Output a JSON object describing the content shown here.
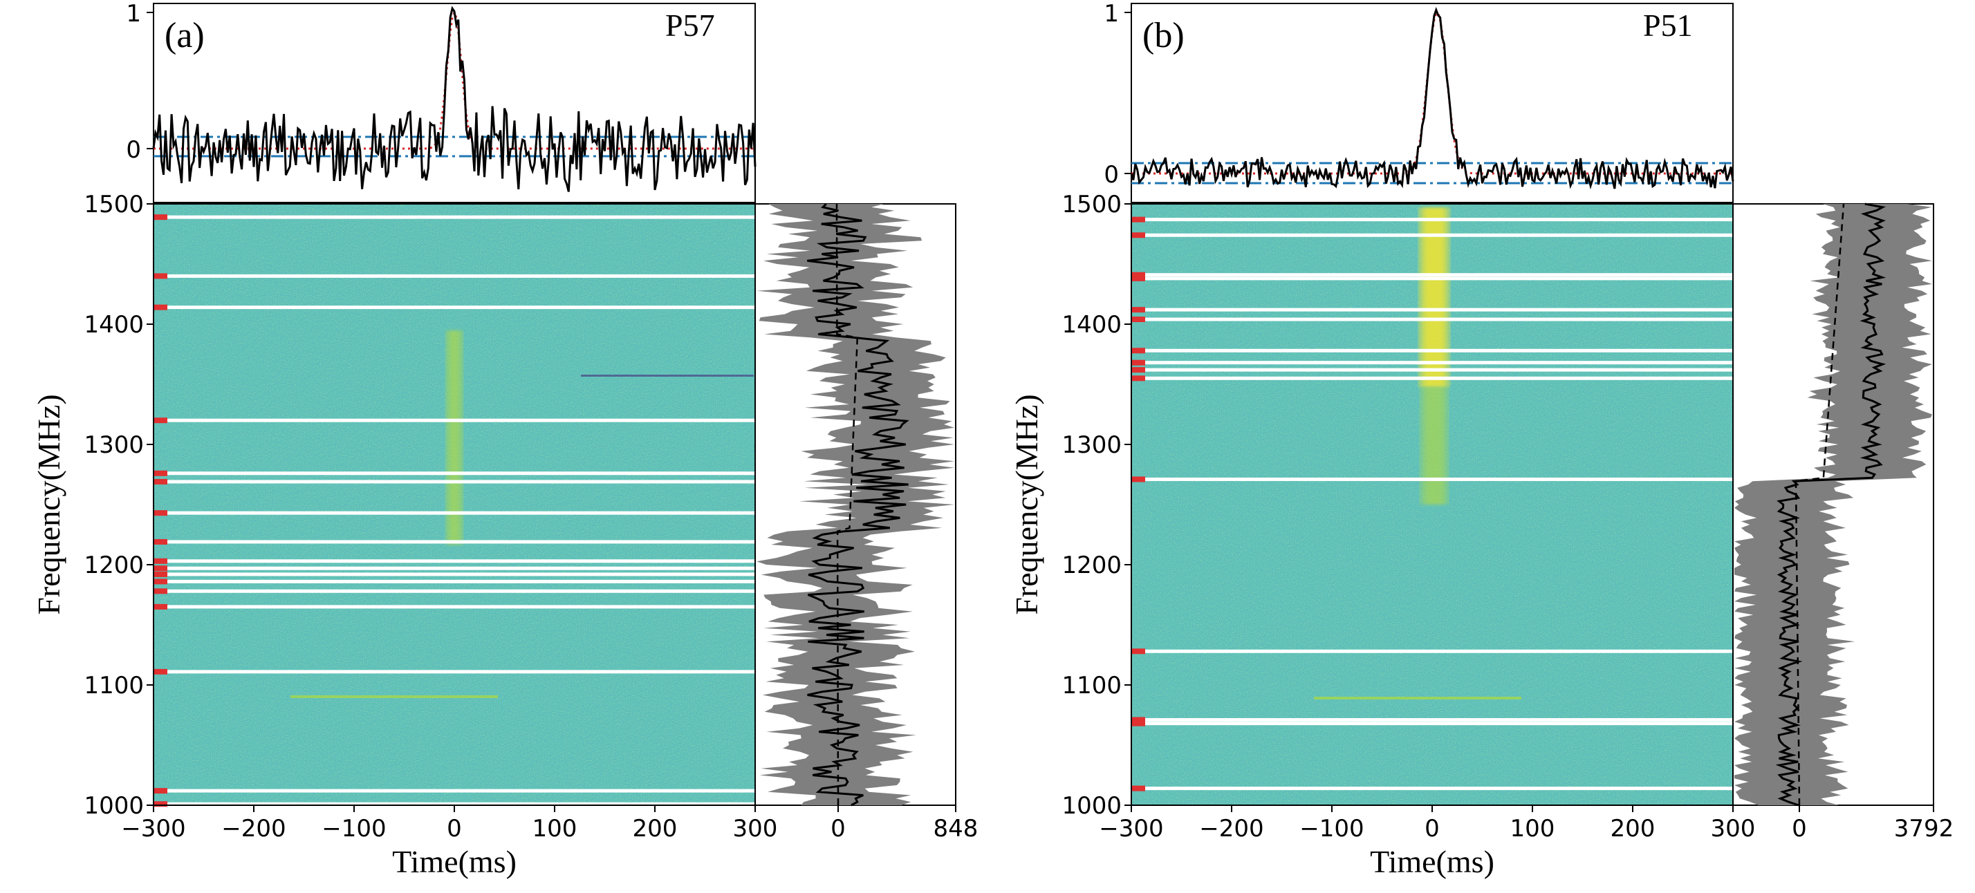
{
  "chart_data": [
    {
      "type": "heatmap",
      "panel_label": "(a)",
      "pulse_name": "P57",
      "xlabel": "Time(ms)",
      "ylabel": "Frequency(MHz)",
      "xlim": [
        -300,
        300
      ],
      "ylim": [
        1000,
        1500
      ],
      "x_ticks": [
        "−300",
        "−200",
        "−100",
        "0",
        "100",
        "200",
        "300"
      ],
      "y_ticks": [
        "1000",
        "1100",
        "1200",
        "1300",
        "1400",
        "1500"
      ],
      "profile_ticks": [
        "0",
        "1"
      ],
      "spectrum_ticks": [
        "0",
        "848"
      ],
      "spectrum_max": 848,
      "pulse_center_ms": 0,
      "pulse_width_ms": 12,
      "pulse_bright_band_mhz": [
        1230,
        1390
      ],
      "masked_channels_mhz": [
        1001,
        1012,
        1111,
        1165,
        1178,
        1186,
        1192,
        1197,
        1203,
        1219,
        1243,
        1269,
        1276,
        1320,
        1414,
        1440,
        1489
      ]
    },
    {
      "type": "heatmap",
      "panel_label": "(b)",
      "pulse_name": "P51",
      "xlabel": "Time(ms)",
      "ylabel": "Frequency(MHz)",
      "xlim": [
        -300,
        300
      ],
      "ylim": [
        1000,
        1500
      ],
      "x_ticks": [
        "−300",
        "−200",
        "−100",
        "0",
        "100",
        "200",
        "300"
      ],
      "y_ticks": [
        "1000",
        "1100",
        "1200",
        "1300",
        "1400",
        "1500"
      ],
      "profile_ticks": [
        "0",
        "1"
      ],
      "spectrum_ticks": [
        "0",
        "3792"
      ],
      "spectrum_max": 3792,
      "pulse_center_ms": 5,
      "pulse_width_ms": 16,
      "pulse_bright_band_mhz": [
        1270,
        1500
      ],
      "masked_channels_mhz": [
        1014,
        1068,
        1071,
        1128,
        1271,
        1355,
        1362,
        1368,
        1378,
        1404,
        1412,
        1438,
        1441,
        1474,
        1487
      ]
    }
  ]
}
